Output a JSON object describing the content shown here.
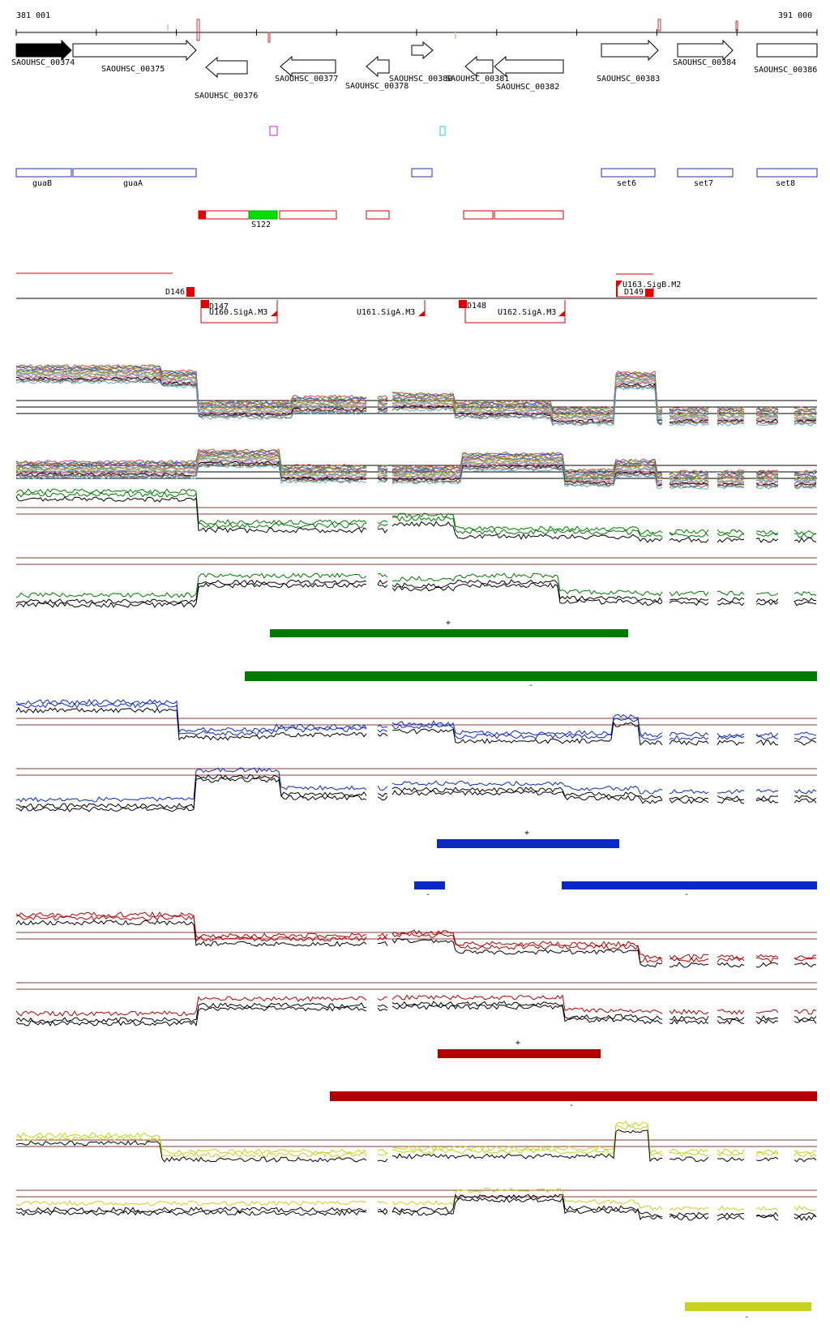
{
  "ruler": {
    "start_label": "381 001",
    "end_label": "391 000"
  },
  "genes": [
    {
      "label": "SAOUHSC_00374",
      "strand": "+",
      "filled": true
    },
    {
      "label": "SAOUHSC_00375",
      "strand": "+",
      "filled": false
    },
    {
      "label": "SAOUHSC_00376",
      "strand": "-",
      "filled": false
    },
    {
      "label": "SAOUHSC_00377",
      "strand": "-",
      "filled": false
    },
    {
      "label": "SAOUHSC_00378",
      "strand": "-",
      "filled": false
    },
    {
      "label": "SAOUHSC_00380",
      "strand": "+",
      "filled": false
    },
    {
      "label": "SAOUHSC_00381",
      "strand": "-",
      "filled": false
    },
    {
      "label": "SAOUHSC_00382",
      "strand": "-",
      "filled": false
    },
    {
      "label": "SAOUHSC_00383",
      "strand": "+",
      "filled": false
    },
    {
      "label": "SAOUHSC_00384",
      "strand": "+",
      "filled": false
    },
    {
      "label": "SAOUHSC_00386",
      "strand": "+",
      "filled": false
    }
  ],
  "gene_names": [
    "guaB",
    "guaA",
    "set6",
    "set7",
    "set8"
  ],
  "segments": {
    "highlight_label": "S122"
  },
  "features": [
    "D146",
    "D147",
    "U160.SigA.M3",
    "U161.SigA.M3",
    "D148",
    "U162.SigA.M3",
    "U163.SigB.M2",
    "D149"
  ],
  "colors": {
    "green": "#007a00",
    "green_bright": "#00dd00",
    "blue": "#0a28c8",
    "red": "#b40000",
    "yellow": "#c8d21e",
    "gene_outline": "#2030c0",
    "segment_outline": "#d00000",
    "threshold": "#8b3a3a"
  },
  "strand_marks": {
    "plus": "+",
    "minus": "-"
  },
  "icons": [
    "gene-arrow-icon",
    "feature-flag-icon"
  ]
}
